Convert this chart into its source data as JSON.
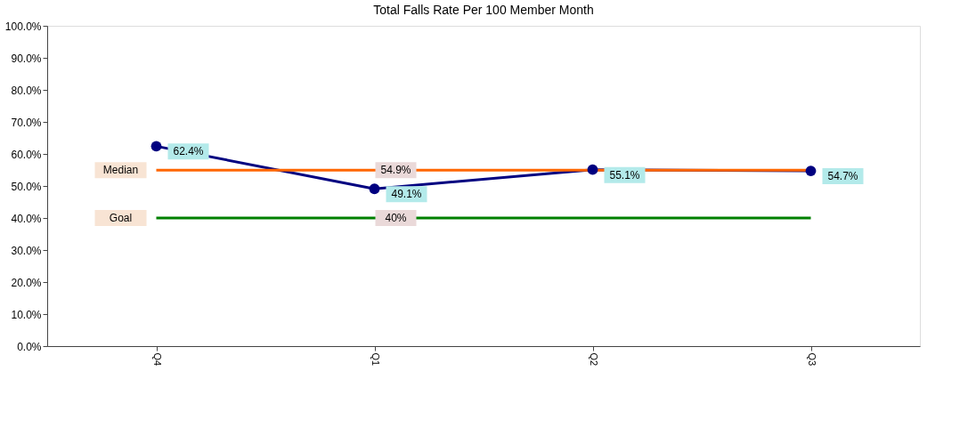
{
  "chart_data": {
    "type": "line",
    "title": "Total Falls Rate Per 100 Member Month",
    "categories": [
      "Q4",
      "Q1",
      "Q2",
      "Q3"
    ],
    "series": [
      {
        "color": "#000080",
        "values": [
          62.4,
          49.1,
          55.1,
          54.7
        ],
        "marker": "circle",
        "value_labels": [
          "62.4%",
          "49.1%",
          "55.1%",
          "54.7%"
        ]
      },
      {
        "name": "Median",
        "color": "#ff6600",
        "values": [
          54.9,
          54.9,
          54.9,
          54.9
        ],
        "marker": "none",
        "value_labels": [
          null,
          "54.9%",
          null,
          null
        ]
      },
      {
        "name": "Goal",
        "color": "#008000",
        "values": [
          40,
          40,
          40,
          40
        ],
        "marker": "none",
        "value_labels": [
          null,
          "40%",
          null,
          null
        ]
      }
    ],
    "ylim": [
      0,
      100
    ],
    "yticks": [
      {
        "value": 0,
        "label": "0.0%"
      },
      {
        "value": 10,
        "label": "10.0%"
      },
      {
        "value": 20,
        "label": "20.0%"
      },
      {
        "value": 30,
        "label": "30.0%"
      },
      {
        "value": 40,
        "label": "40.0%"
      },
      {
        "value": 50,
        "label": "50.0%"
      },
      {
        "value": 60,
        "label": "60.0%"
      },
      {
        "value": 70,
        "label": "70.0%"
      },
      {
        "value": 80,
        "label": "80.0%"
      },
      {
        "value": 90,
        "label": "90.0%"
      },
      {
        "value": 100,
        "label": "100.0%"
      }
    ],
    "grid": false,
    "legend": false
  }
}
